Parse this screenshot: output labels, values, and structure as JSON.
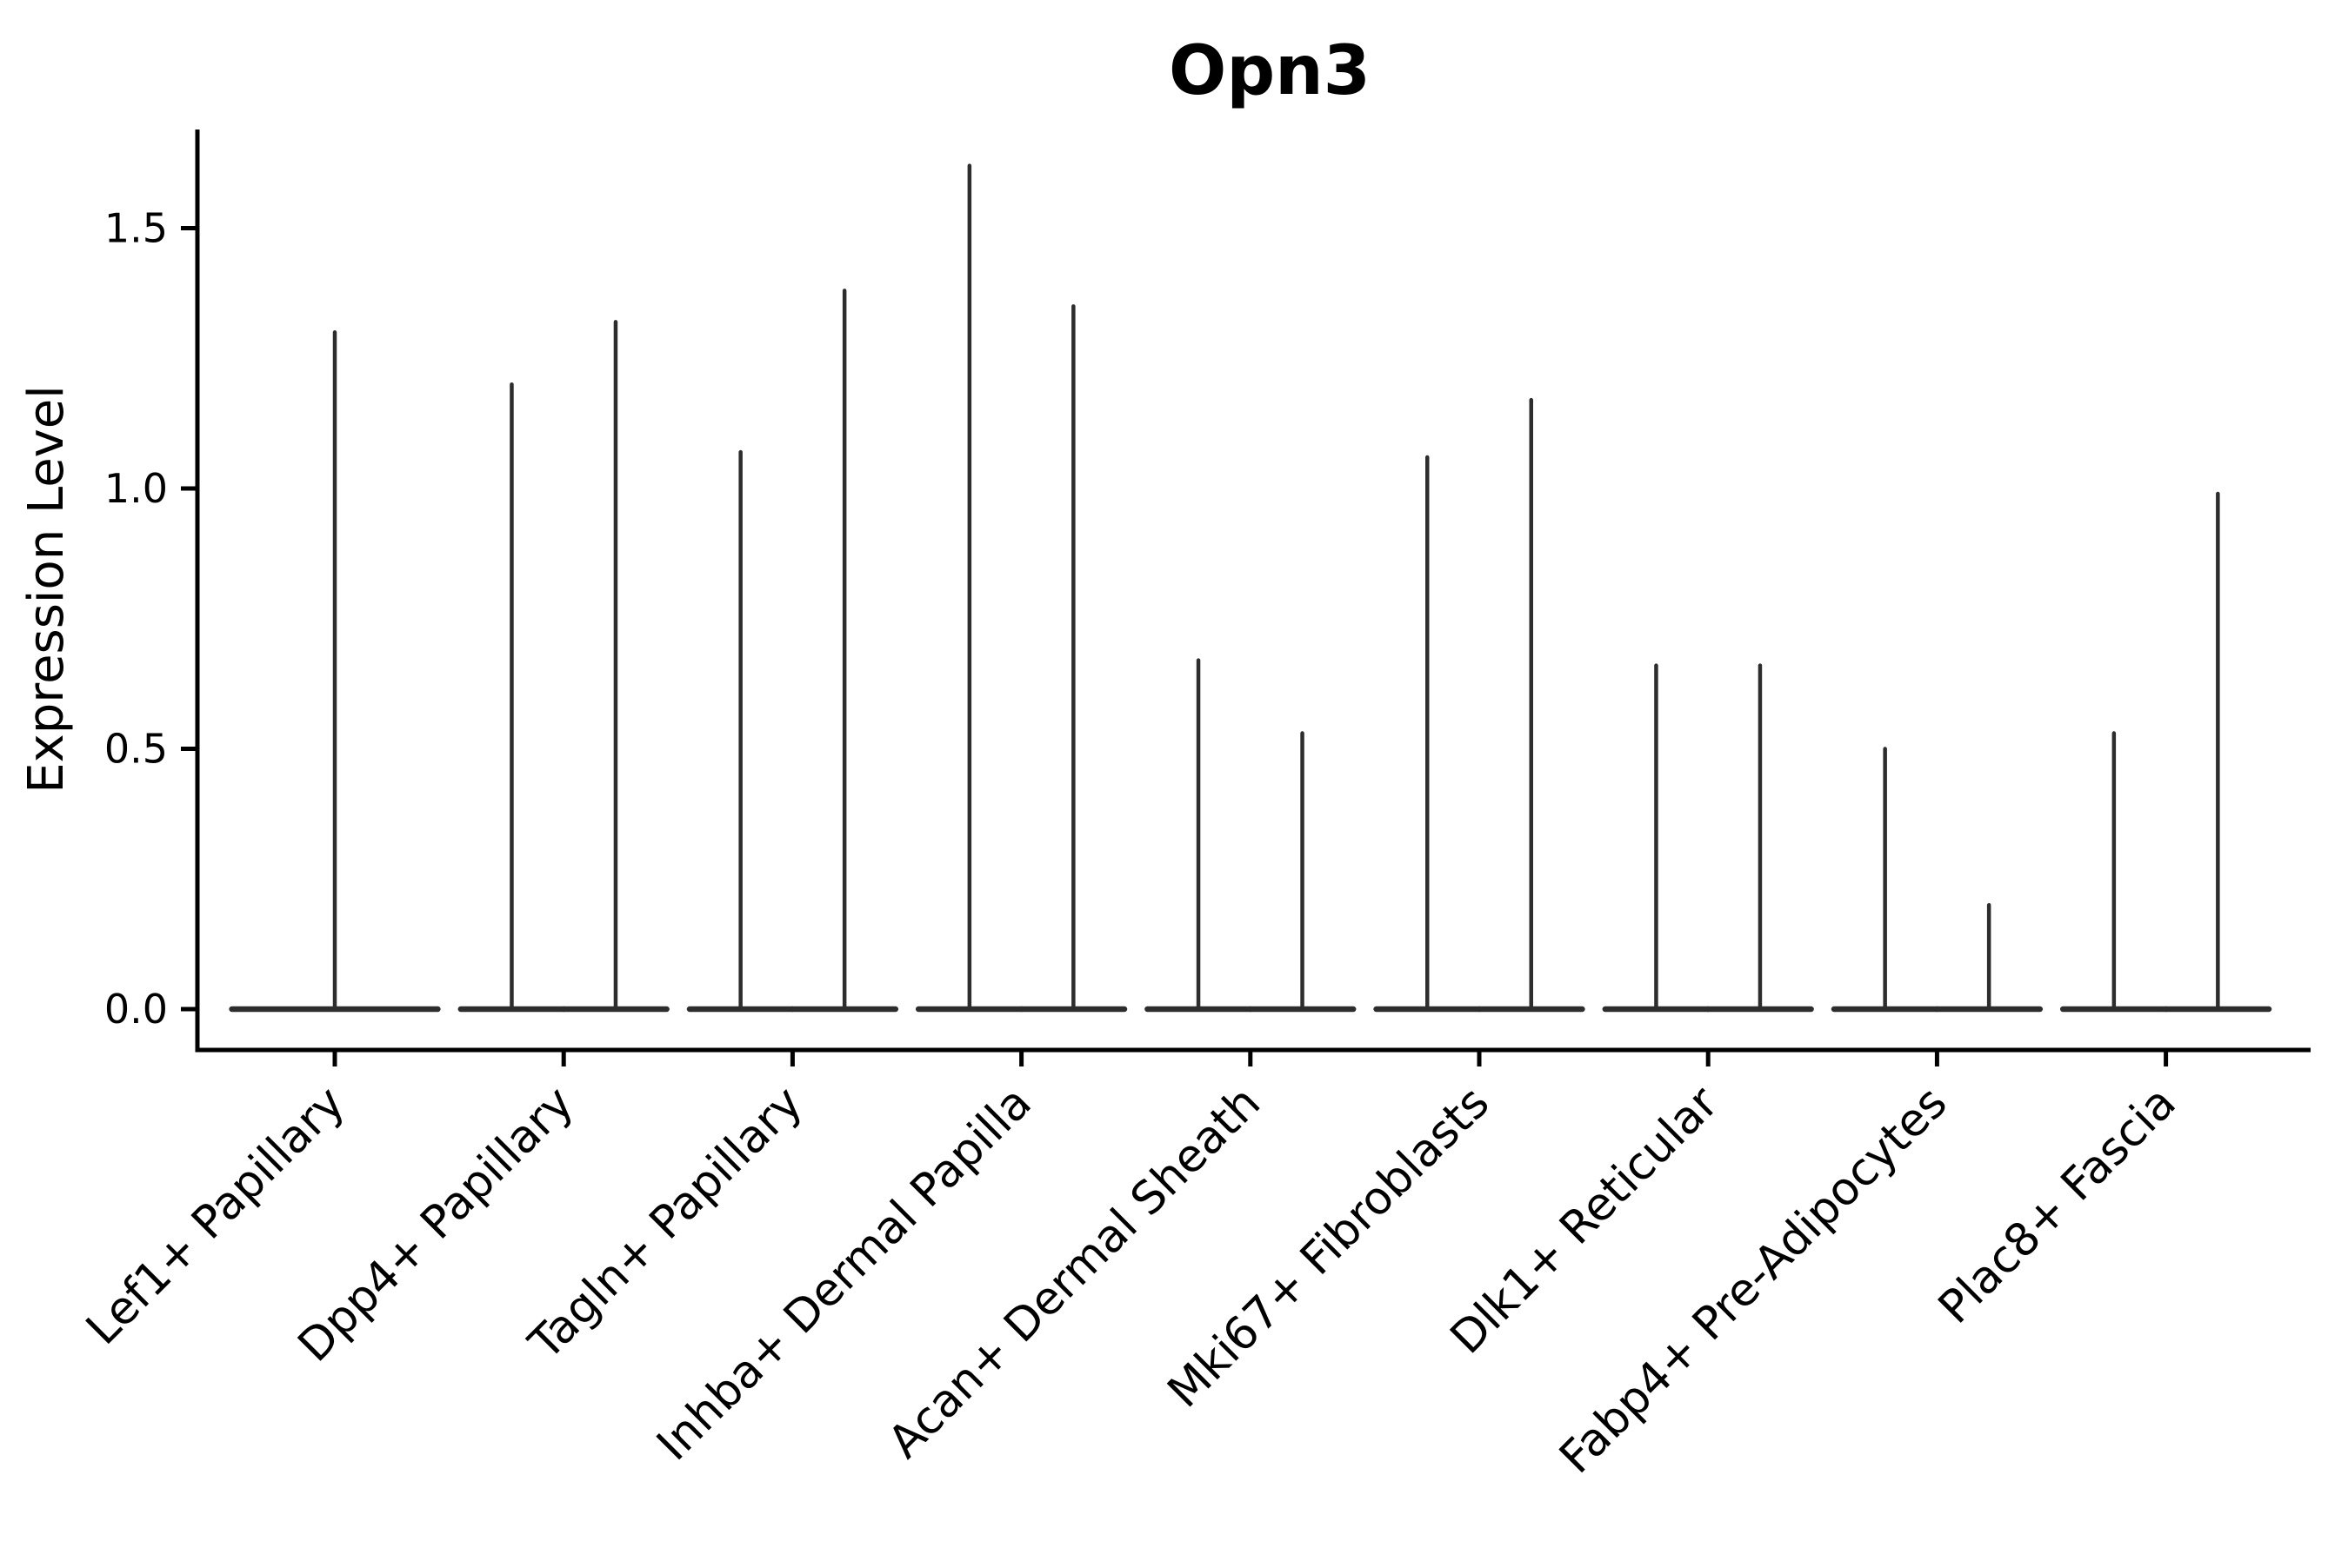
{
  "page": {
    "background": "#ffffff"
  },
  "chart_data": {
    "type": "violin",
    "title": "Opn3",
    "ylabel": "Expression Level",
    "xlabel": "",
    "legend": "none",
    "grid": false,
    "y_tick_labels": [
      "0.0",
      "0.5",
      "1.0",
      "1.5"
    ],
    "y_tick_values": [
      0.0,
      0.5,
      1.0,
      1.5
    ],
    "ylim": [
      -0.08,
      1.77
    ],
    "style": {
      "violin_color": "#2d2d2d",
      "axis_color": "#000000",
      "text_color": "#000000",
      "background": "#ffffff"
    },
    "note": "Each violin is collapsed to a flat horizontal bar at expression 0 (nearly all cells zero) with a thin vertical tail reaching the maximum expression value. Categories with two tails contain two side-by-side violins.",
    "categories": [
      {
        "label": "Lef1+ Papillary",
        "tail_max_values": [
          1.3
        ]
      },
      {
        "label": "Dpp4+ Papillary",
        "tail_max_values": [
          1.2,
          1.32
        ]
      },
      {
        "label": "Tagln+ Papillary",
        "tail_max_values": [
          1.07,
          1.38
        ]
      },
      {
        "label": "Inhba+ Dermal Papilla",
        "tail_max_values": [
          1.62,
          1.35
        ]
      },
      {
        "label": "Acan+ Dermal Sheath",
        "tail_max_values": [
          0.67,
          0.53
        ]
      },
      {
        "label": "Mki67+ Fibroblasts",
        "tail_max_values": [
          1.06,
          1.17
        ]
      },
      {
        "label": "Dlk1+ Reticular",
        "tail_max_values": [
          0.66,
          0.66
        ]
      },
      {
        "label": "Fabp4+ Pre-Adipocytes",
        "tail_max_values": [
          0.5,
          0.2
        ]
      },
      {
        "label": "Plac8+ Fascia",
        "tail_max_values": [
          0.53,
          0.99
        ]
      }
    ]
  }
}
